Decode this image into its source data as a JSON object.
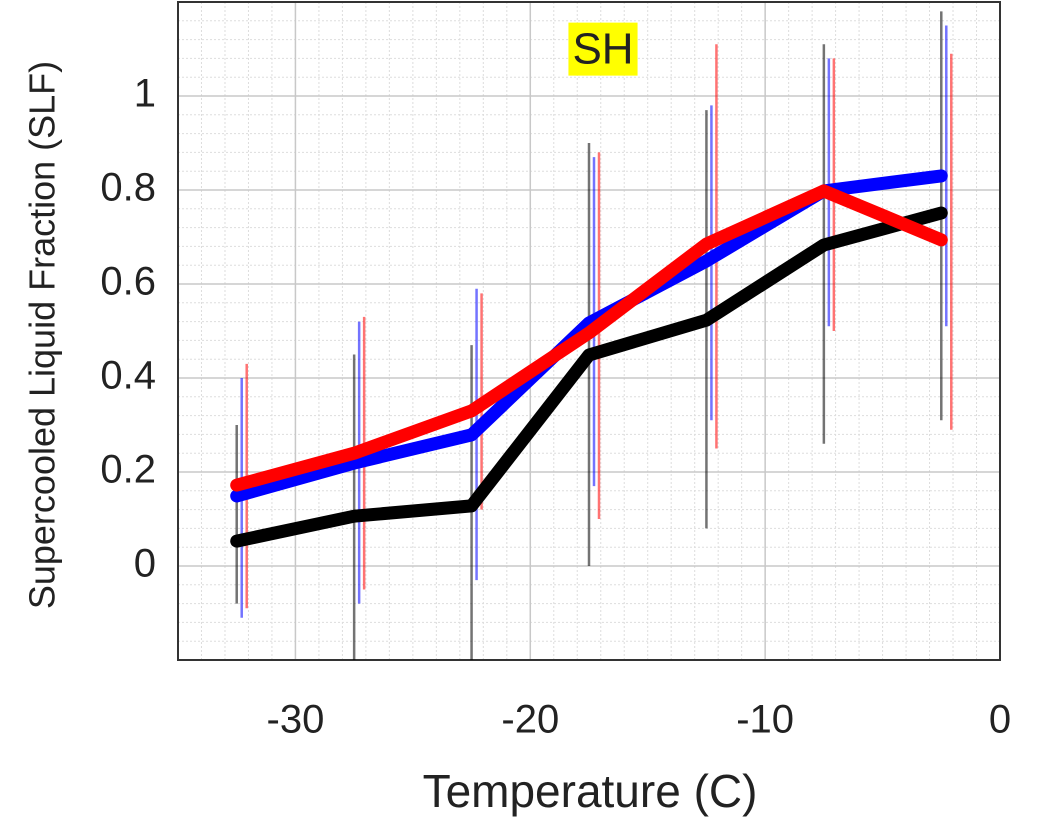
{
  "chart_data": {
    "type": "line",
    "title": "SH",
    "xlabel": "Temperature (C)",
    "ylabel": "Supercooled Liquid Fraction (SLF)",
    "x": [
      -32.5,
      -27.5,
      -22.5,
      -17.5,
      -12.5,
      -7.5,
      -2.5
    ],
    "series": [
      {
        "color": "#000000",
        "values": [
          0.053,
          0.106,
          0.128,
          0.449,
          0.523,
          0.683,
          0.751
        ],
        "lower": [
          -0.08,
          -0.2,
          -0.2,
          0.0,
          0.08,
          0.26,
          0.31
        ],
        "upper": [
          0.3,
          0.45,
          0.47,
          0.9,
          0.97,
          1.11,
          1.18
        ]
      },
      {
        "color": "#0000ff",
        "values": [
          0.149,
          0.219,
          0.279,
          0.517,
          0.649,
          0.798,
          0.83
        ],
        "lower": [
          -0.11,
          -0.08,
          -0.03,
          0.17,
          0.31,
          0.51,
          0.51
        ],
        "upper": [
          0.4,
          0.52,
          0.59,
          0.87,
          0.98,
          1.08,
          1.15
        ]
      },
      {
        "color": "#ff0000",
        "values": [
          0.172,
          0.24,
          0.33,
          0.496,
          0.685,
          0.798,
          0.694
        ],
        "lower": [
          -0.09,
          -0.05,
          0.12,
          0.1,
          0.25,
          0.5,
          0.29
        ],
        "upper": [
          0.43,
          0.53,
          0.58,
          0.88,
          1.11,
          1.08,
          1.09
        ]
      }
    ],
    "xlim": [
      -35,
      0
    ],
    "ylim": [
      -0.2,
      1.2
    ],
    "xticks": [
      -30,
      -20,
      -10,
      0
    ],
    "yticks": [
      0,
      0.2,
      0.4,
      0.6,
      0.8,
      1
    ],
    "grid": true,
    "minor_grid": true
  }
}
